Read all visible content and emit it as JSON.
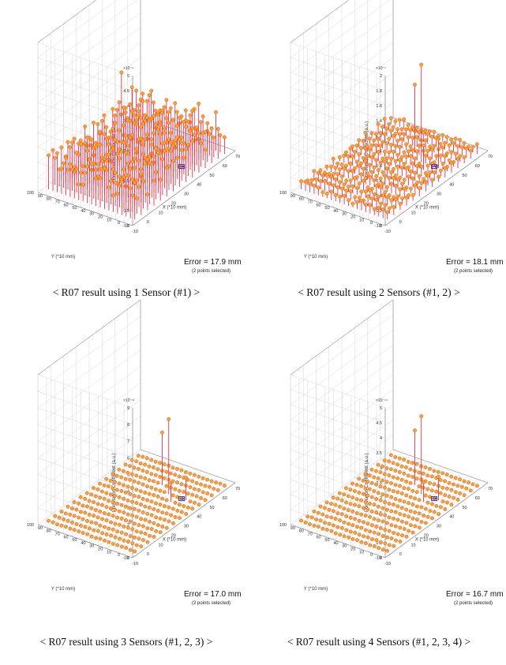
{
  "chart_data": [
    {
      "type": "stem3d",
      "caption": "< R07 result using 1 Sensor (#1) >",
      "error_text": "Error = 17.9 mm",
      "selection_text": "(2 points selected)",
      "zlabel": "Correlation Coefficient (a.u.)",
      "xlabel": "X (*10 mm)",
      "ylabel": "Y (*10 mm)",
      "z_exponent": "×10⁻⁴",
      "z_ticks": [
        "0",
        "0.5",
        "1",
        "1.5",
        "2",
        "2.5",
        "3",
        "3.5",
        "4",
        "4.5",
        "5"
      ],
      "zlim": [
        0,
        5
      ],
      "x_ticks": [
        "-10",
        "0",
        "10",
        "20",
        "30",
        "40",
        "50",
        "60",
        "70"
      ],
      "y_ticks": [
        "-10",
        "0",
        "10",
        "20",
        "30",
        "40",
        "50",
        "60",
        "70",
        "80",
        "90",
        "100"
      ],
      "xlim": [
        -10,
        70
      ],
      "ylim": [
        -10,
        100
      ],
      "grid": true,
      "grid_points": {
        "x_start": -5,
        "x_end": 65,
        "x_step": 5,
        "y_start": -5,
        "y_end": 95,
        "y_step": 5
      },
      "value_profile": {
        "base": 0.5,
        "spread": 0.9,
        "peak": 2.9
      },
      "selected_point": {
        "x": 45,
        "y": 15
      },
      "error_mm": 17.9,
      "colors": {
        "stem": "#e8334a",
        "marker": "#f5a623",
        "selected": "#2233aa"
      }
    },
    {
      "type": "stem3d",
      "caption": "< R07 result using 2 Sensors (#1, 2) >",
      "error_text": "Error = 18.1 mm",
      "selection_text": "(2 points selected)",
      "zlabel": "Correlation Coefficient (a.u.)",
      "xlabel": "X (*10 mm)",
      "ylabel": "Y (*10 mm)",
      "z_exponent": "×10⁻⁷",
      "z_ticks": [
        "0",
        "0.2",
        "0.4",
        "0.6",
        "0.8",
        "1",
        "1.2",
        "1.4",
        "1.6",
        "1.8",
        "2"
      ],
      "zlim": [
        0,
        2
      ],
      "x_ticks": [
        "-10",
        "0",
        "10",
        "20",
        "30",
        "40",
        "50",
        "60",
        "70"
      ],
      "y_ticks": [
        "-10",
        "0",
        "10",
        "20",
        "30",
        "40",
        "50",
        "60",
        "70",
        "80",
        "90",
        "100"
      ],
      "xlim": [
        -10,
        70
      ],
      "ylim": [
        -10,
        100
      ],
      "grid": true,
      "grid_points": {
        "x_start": -5,
        "x_end": 65,
        "x_step": 5,
        "y_start": -5,
        "y_end": 95,
        "y_step": 5
      },
      "value_profile": {
        "base": 0.05,
        "spread": 0.08,
        "peak": 1.3
      },
      "selected_point": {
        "x": 45,
        "y": 15
      },
      "error_mm": 18.1,
      "colors": {
        "stem": "#e8334a",
        "marker": "#f5a623",
        "selected": "#2233aa"
      }
    },
    {
      "type": "stem3d",
      "caption": "< R07 result using 3 Sensors (#1, 2, 3) >",
      "error_text": "Error = 17.0 mm",
      "selection_text": "(2 points selected)",
      "zlabel": "Correlation Coefficient (a.u.)",
      "xlabel": "X (*10 mm)",
      "ylabel": "Y (*10 mm)",
      "z_exponent": "×10⁻¹¹",
      "z_ticks": [
        "0",
        "1",
        "2",
        "3",
        "4",
        "5",
        "6",
        "7",
        "8",
        "9"
      ],
      "zlim": [
        0,
        9
      ],
      "x_ticks": [
        "-10",
        "0",
        "10",
        "20",
        "30",
        "40",
        "50",
        "60",
        "70"
      ],
      "y_ticks": [
        "-10",
        "0",
        "10",
        "20",
        "30",
        "40",
        "50",
        "60",
        "70",
        "80",
        "90",
        "100"
      ],
      "xlim": [
        -10,
        70
      ],
      "ylim": [
        -10,
        100
      ],
      "grid": true,
      "grid_points": {
        "x_start": -5,
        "x_end": 65,
        "x_step": 5,
        "y_start": -5,
        "y_end": 95,
        "y_step": 5
      },
      "value_profile": {
        "base": 0.0,
        "spread": 0.05,
        "peak": 4.5
      },
      "selected_point": {
        "x": 45,
        "y": 15
      },
      "error_mm": 17.0,
      "colors": {
        "stem": "#e8334a",
        "marker": "#f5a623",
        "selected": "#2233aa"
      }
    },
    {
      "type": "stem3d",
      "caption": "< R07 result using 4 Sensors (#1, 2, 3, 4) >",
      "error_text": "Error = 16.7 mm",
      "selection_text": "(2 points selected)",
      "zlabel": "Correlation Coefficient (a.u.)",
      "xlabel": "X (*10 mm)",
      "ylabel": "Y (*10 mm)",
      "z_exponent": "×10⁻¹⁴",
      "z_ticks": [
        "0",
        "0.5",
        "1",
        "1.5",
        "2",
        "2.5",
        "3",
        "3.5",
        "4",
        "4.5",
        "5"
      ],
      "zlim": [
        0,
        5
      ],
      "x_ticks": [
        "-10",
        "0",
        "10",
        "20",
        "30",
        "40",
        "50",
        "60",
        "70"
      ],
      "y_ticks": [
        "-10",
        "0",
        "10",
        "20",
        "30",
        "40",
        "50",
        "60",
        "70",
        "80",
        "90",
        "100"
      ],
      "xlim": [
        -10,
        70
      ],
      "ylim": [
        -10,
        100
      ],
      "grid": true,
      "grid_points": {
        "x_start": -5,
        "x_end": 65,
        "x_step": 5,
        "y_start": -5,
        "y_end": 95,
        "y_step": 5
      },
      "value_profile": {
        "base": 0.0,
        "spread": 0.03,
        "peak": 2.6
      },
      "selected_point": {
        "x": 45,
        "y": 15
      },
      "error_mm": 16.7,
      "colors": {
        "stem": "#e8334a",
        "marker": "#f5a623",
        "selected": "#2233aa"
      }
    }
  ]
}
